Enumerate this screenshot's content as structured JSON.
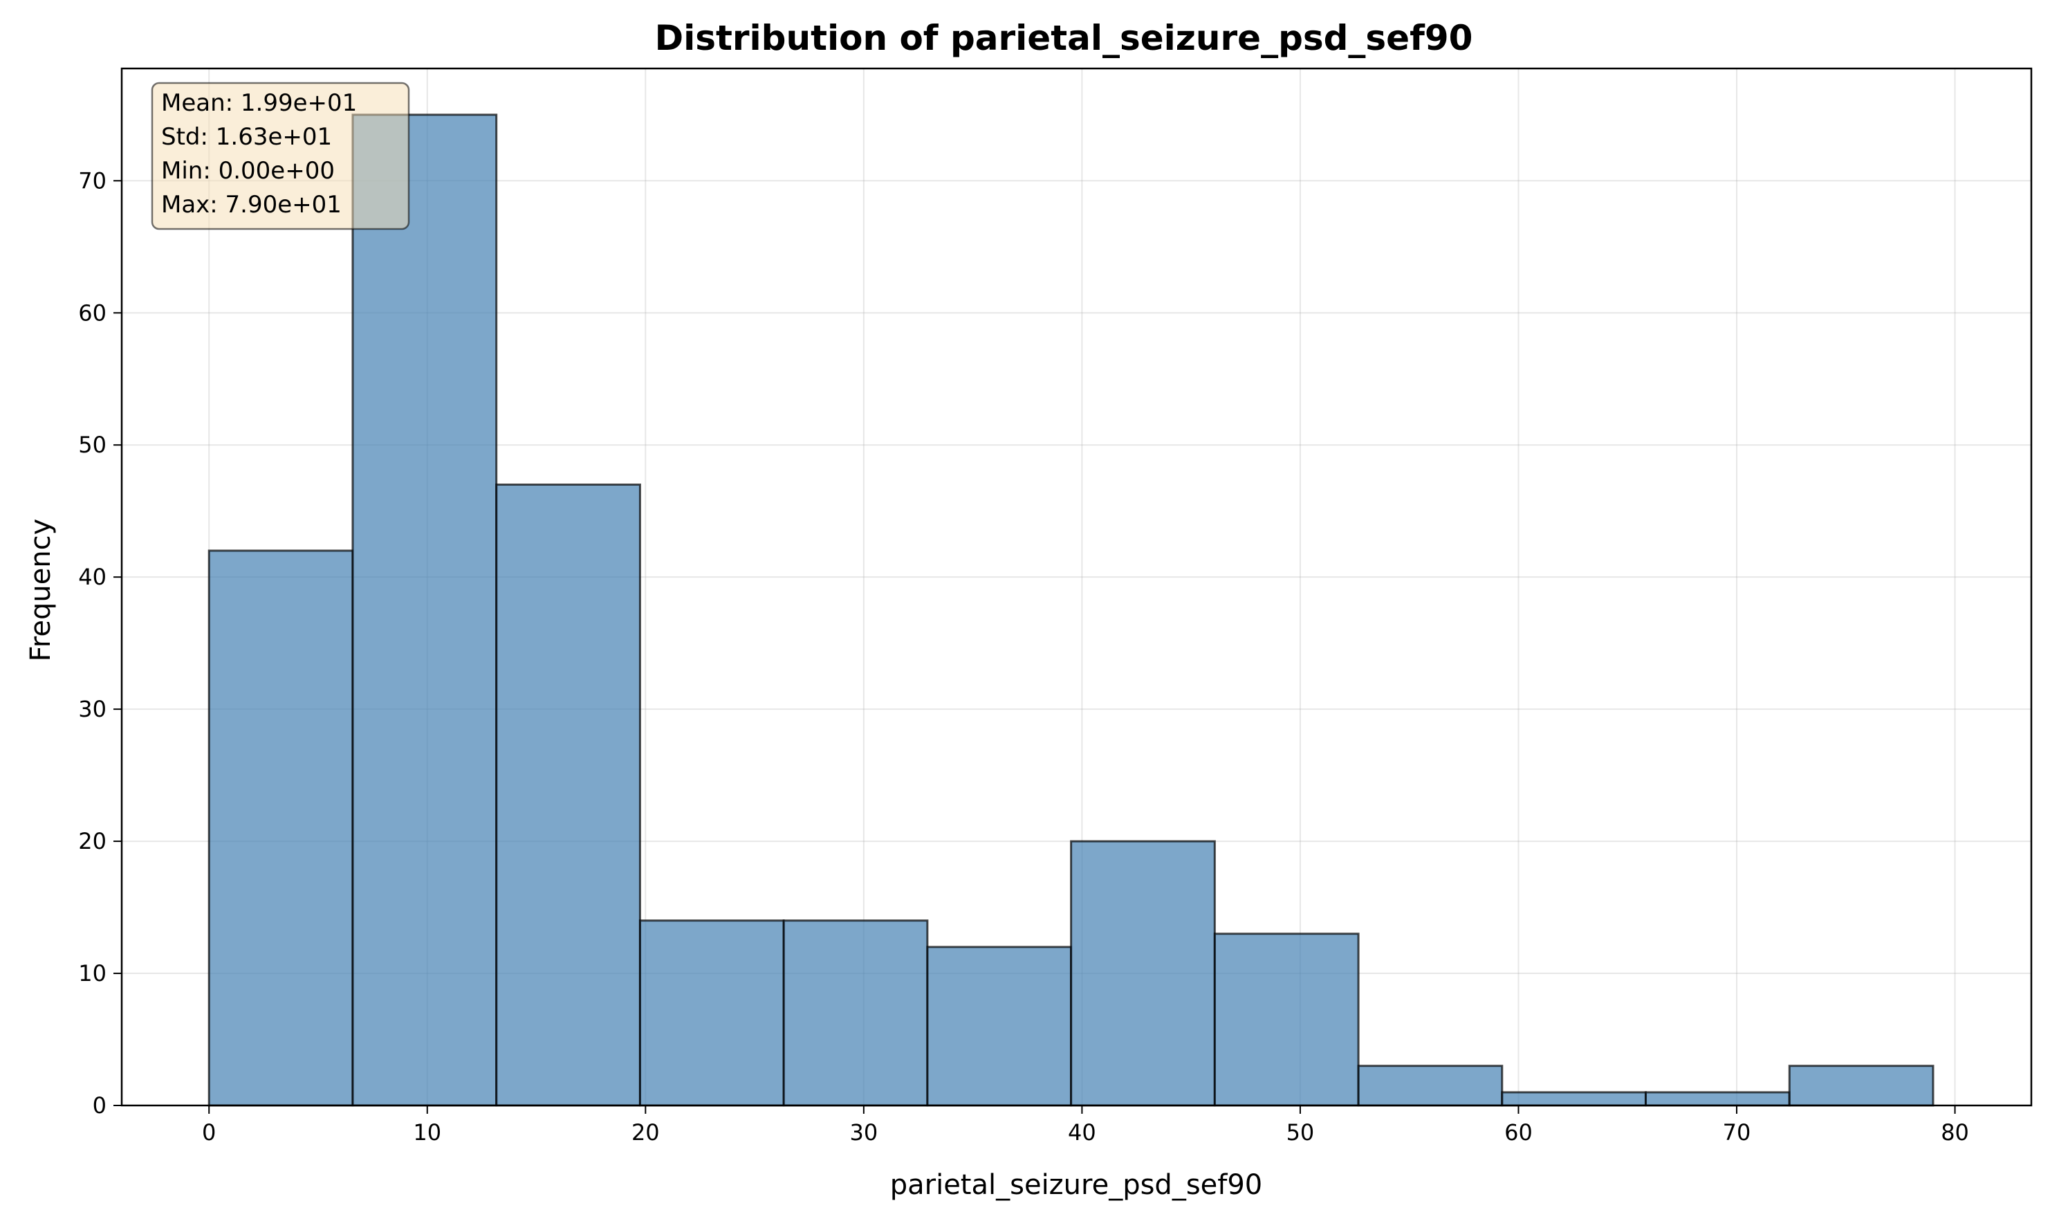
{
  "chart_data": {
    "type": "bar",
    "title": "Distribution of parietal_seizure_psd_sef90",
    "xlabel": "parietal_seizure_psd_sef90",
    "ylabel": "Frequency",
    "xlim": [
      -4,
      83.5
    ],
    "ylim": [
      0,
      78.5
    ],
    "grid": true,
    "bin_edges": [
      0,
      6.583,
      13.167,
      19.75,
      26.333,
      32.917,
      39.5,
      46.083,
      52.667,
      59.25,
      65.833,
      72.417,
      79
    ],
    "values": [
      42,
      75,
      47,
      14,
      14,
      12,
      20,
      13,
      3,
      1,
      1,
      3
    ],
    "x_ticks": [
      0,
      10,
      20,
      30,
      40,
      50,
      60,
      70,
      80
    ],
    "y_ticks": [
      0,
      10,
      20,
      30,
      40,
      50,
      60,
      70
    ],
    "stats": {
      "mean": "Mean: 1.99e+01",
      "std": "Std: 1.63e+01",
      "min": "Min: 0.00e+00",
      "max": "Max: 7.90e+01"
    }
  },
  "colors": {
    "bar_fill": "#4682b4",
    "bar_edge": "#000000",
    "stats_box_fill": "#f5deb3",
    "grid": "#b0b0b0"
  }
}
